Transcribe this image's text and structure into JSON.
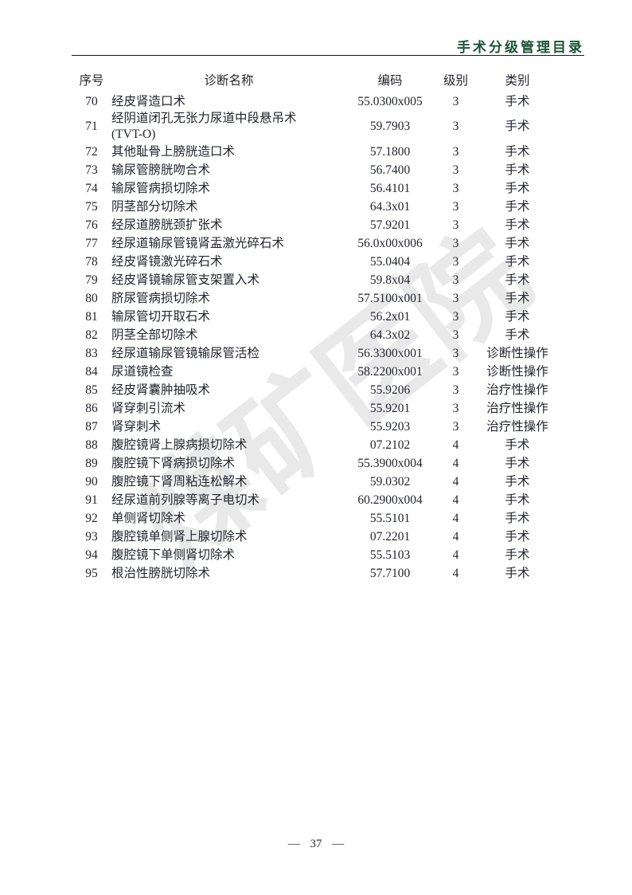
{
  "header": {
    "title": "手术分级管理目录",
    "title_color": "#1d5438"
  },
  "watermark": {
    "text": "煤矿医院"
  },
  "table": {
    "columns": [
      {
        "key": "no",
        "label": "序号"
      },
      {
        "key": "name",
        "label": "诊断名称"
      },
      {
        "key": "code",
        "label": "编码"
      },
      {
        "key": "level",
        "label": "级别"
      },
      {
        "key": "category",
        "label": "类别"
      }
    ],
    "rows": [
      {
        "no": "70",
        "name": "经皮肾造口术",
        "code": "55.0300x005",
        "level": "3",
        "category": "手术"
      },
      {
        "no": "71",
        "name": "经阴道闭孔无张力尿道中段悬吊术\n(TVT-O)",
        "code": "59.7903",
        "level": "3",
        "category": "手术"
      },
      {
        "no": "72",
        "name": "其他耻骨上膀胱造口术",
        "code": "57.1800",
        "level": "3",
        "category": "手术"
      },
      {
        "no": "73",
        "name": "输尿管膀胱吻合术",
        "code": "56.7400",
        "level": "3",
        "category": "手术"
      },
      {
        "no": "74",
        "name": "输尿管病损切除术",
        "code": "56.4101",
        "level": "3",
        "category": "手术"
      },
      {
        "no": "75",
        "name": "阴茎部分切除术",
        "code": "64.3x01",
        "level": "3",
        "category": "手术"
      },
      {
        "no": "76",
        "name": "经尿道膀胱颈扩张术",
        "code": "57.9201",
        "level": "3",
        "category": "手术"
      },
      {
        "no": "77",
        "name": "经尿道输尿管镜肾盂激光碎石术",
        "code": "56.0x00x006",
        "level": "3",
        "category": "手术"
      },
      {
        "no": "78",
        "name": "经皮肾镜激光碎石术",
        "code": "55.0404",
        "level": "3",
        "category": "手术"
      },
      {
        "no": "79",
        "name": "经皮肾镜输尿管支架置入术",
        "code": "59.8x04",
        "level": "3",
        "category": "手术"
      },
      {
        "no": "80",
        "name": "脐尿管病损切除术",
        "code": "57.5100x001",
        "level": "3",
        "category": "手术"
      },
      {
        "no": "81",
        "name": "输尿管切开取石术",
        "code": "56.2x01",
        "level": "3",
        "category": "手术"
      },
      {
        "no": "82",
        "name": "阴茎全部切除术",
        "code": "64.3x02",
        "level": "3",
        "category": "手术"
      },
      {
        "no": "83",
        "name": "经尿道输尿管镜输尿管活检",
        "code": "56.3300x001",
        "level": "3",
        "category": "诊断性操作"
      },
      {
        "no": "84",
        "name": "尿道镜检查",
        "code": "58.2200x001",
        "level": "3",
        "category": "诊断性操作"
      },
      {
        "no": "85",
        "name": "经皮肾囊肿抽吸术",
        "code": "55.9206",
        "level": "3",
        "category": "治疗性操作"
      },
      {
        "no": "86",
        "name": "肾穿刺引流术",
        "code": "55.9201",
        "level": "3",
        "category": "治疗性操作"
      },
      {
        "no": "87",
        "name": "肾穿刺术",
        "code": "55.9203",
        "level": "3",
        "category": "治疗性操作"
      },
      {
        "no": "88",
        "name": "腹腔镜肾上腺病损切除术",
        "code": "07.2102",
        "level": "4",
        "category": "手术"
      },
      {
        "no": "89",
        "name": "腹腔镜下肾病损切除术",
        "code": "55.3900x004",
        "level": "4",
        "category": "手术"
      },
      {
        "no": "90",
        "name": "腹腔镜下肾周粘连松解术",
        "code": "59.0302",
        "level": "4",
        "category": "手术"
      },
      {
        "no": "91",
        "name": "经尿道前列腺等离子电切术",
        "code": "60.2900x004",
        "level": "4",
        "category": "手术"
      },
      {
        "no": "92",
        "name": "单侧肾切除术",
        "code": "55.5101",
        "level": "4",
        "category": "手术"
      },
      {
        "no": "93",
        "name": "腹腔镜单侧肾上腺切除术",
        "code": "07.2201",
        "level": "4",
        "category": "手术"
      },
      {
        "no": "94",
        "name": "腹腔镜下单侧肾切除术",
        "code": "55.5103",
        "level": "4",
        "category": "手术"
      },
      {
        "no": "95",
        "name": "根治性膀胱切除术",
        "code": "57.7100",
        "level": "4",
        "category": "手术"
      }
    ]
  },
  "footer": {
    "page_number": "37",
    "display": "— 37 —"
  }
}
